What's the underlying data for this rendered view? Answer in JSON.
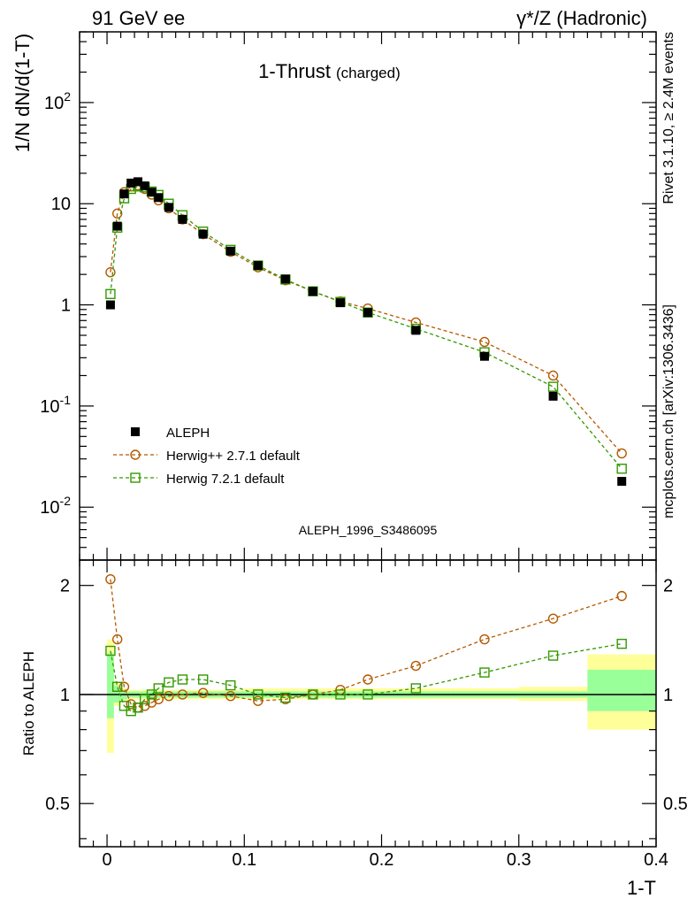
{
  "header": {
    "energy": "91 GeV ee",
    "process": "γ*/Z (Hadronic)"
  },
  "side_labels": {
    "rivet": "Rivet 3.1.10, ≥ 2.4M events",
    "mcplots": "mcplots.cern.ch [arXiv:1306.3436]"
  },
  "chart_data": [
    {
      "type": "scatter",
      "title": "1-Thrust",
      "title_note": "(charged)",
      "ylabel": "1/N dN/d(1-T)",
      "xlabel": "1-T",
      "analysis_tag": "ALEPH_1996_S3486095",
      "yscale": "log",
      "xlim": [
        -0.02,
        0.4
      ],
      "ylim": [
        0.003,
        500
      ],
      "y_ticks": [
        {
          "v": 0.01,
          "base": "10",
          "exp": "-2"
        },
        {
          "v": 0.1,
          "base": "10",
          "exp": "-1"
        },
        {
          "v": 1,
          "base": "1",
          "exp": ""
        },
        {
          "v": 10,
          "base": "10",
          "exp": ""
        },
        {
          "v": 100,
          "base": "10",
          "exp": "2"
        }
      ],
      "legend_position": "lower-left",
      "x": [
        0.0025,
        0.0075,
        0.0125,
        0.0175,
        0.0225,
        0.0275,
        0.0325,
        0.0375,
        0.045,
        0.055,
        0.07,
        0.09,
        0.11,
        0.13,
        0.15,
        0.17,
        0.19,
        0.225,
        0.275,
        0.325,
        0.375
      ],
      "series": [
        {
          "name": "ALEPH",
          "color": "#000000",
          "marker": "filled-square",
          "values": [
            1.0,
            6.0,
            12.5,
            16.0,
            16.5,
            15.0,
            13.0,
            11.5,
            9.2,
            7.0,
            5.0,
            3.4,
            2.45,
            1.8,
            1.36,
            1.05,
            0.84,
            0.56,
            0.31,
            0.125,
            0.018
          ]
        },
        {
          "name": "Herwig++ 2.7.1 default",
          "color": "#b35900",
          "marker": "open-circle",
          "values": [
            2.1,
            8.0,
            13.0,
            14.8,
            15.2,
            14.0,
            12.3,
            10.8,
            9.0,
            7.0,
            5.0,
            3.35,
            2.35,
            1.75,
            1.36,
            1.08,
            0.92,
            0.67,
            0.43,
            0.2,
            0.034
          ]
        },
        {
          "name": "Herwig 7.2.1 default",
          "color": "#339900",
          "marker": "open-square",
          "values": [
            1.28,
            5.8,
            11.3,
            14.0,
            14.8,
            14.5,
            13.2,
            12.2,
            10.0,
            7.7,
            5.3,
            3.5,
            2.45,
            1.78,
            1.36,
            1.07,
            0.84,
            0.58,
            0.34,
            0.155,
            0.024
          ]
        }
      ]
    },
    {
      "type": "scatter",
      "ylabel": "Ratio to ALEPH",
      "xlabel": "1-T",
      "xlim": [
        -0.02,
        0.4
      ],
      "ylim": [
        0.38,
        2.35
      ],
      "y_ticks": [
        {
          "v": 0.5,
          "label": "0.5"
        },
        {
          "v": 1,
          "label": "1"
        },
        {
          "v": 2,
          "label": "2"
        }
      ],
      "x_ticks": [
        {
          "v": 0,
          "label": "0"
        },
        {
          "v": 0.1,
          "label": "0.1"
        },
        {
          "v": 0.2,
          "label": "0.2"
        },
        {
          "v": 0.3,
          "label": "0.3"
        },
        {
          "v": 0.4,
          "label": "0.4"
        }
      ],
      "bins": [
        [
          0,
          0.005
        ],
        [
          0.005,
          0.01
        ],
        [
          0.01,
          0.015
        ],
        [
          0.015,
          0.02
        ],
        [
          0.02,
          0.025
        ],
        [
          0.025,
          0.03
        ],
        [
          0.03,
          0.035
        ],
        [
          0.035,
          0.04
        ],
        [
          0.04,
          0.05
        ],
        [
          0.05,
          0.06
        ],
        [
          0.06,
          0.08
        ],
        [
          0.08,
          0.1
        ],
        [
          0.1,
          0.12
        ],
        [
          0.12,
          0.14
        ],
        [
          0.14,
          0.16
        ],
        [
          0.16,
          0.18
        ],
        [
          0.18,
          0.2
        ],
        [
          0.2,
          0.25
        ],
        [
          0.25,
          0.3
        ],
        [
          0.3,
          0.35
        ],
        [
          0.35,
          0.4
        ]
      ],
      "band_stat": [
        [
          0.86,
          1.3
        ],
        [
          0.95,
          1.06
        ],
        [
          0.97,
          1.03
        ],
        [
          0.98,
          1.02
        ],
        [
          0.98,
          1.02
        ],
        [
          0.98,
          1.02
        ],
        [
          0.98,
          1.02
        ],
        [
          0.98,
          1.02
        ],
        [
          0.98,
          1.02
        ],
        [
          0.98,
          1.02
        ],
        [
          0.98,
          1.02
        ],
        [
          0.98,
          1.02
        ],
        [
          0.98,
          1.02
        ],
        [
          0.98,
          1.02
        ],
        [
          0.98,
          1.02
        ],
        [
          0.98,
          1.02
        ],
        [
          0.98,
          1.02
        ],
        [
          0.98,
          1.02
        ],
        [
          0.98,
          1.02
        ],
        [
          0.98,
          1.02
        ],
        [
          0.9,
          1.17
        ]
      ],
      "band_total": [
        [
          0.69,
          1.42
        ],
        [
          0.93,
          1.08
        ],
        [
          0.96,
          1.04
        ],
        [
          0.97,
          1.03
        ],
        [
          0.97,
          1.03
        ],
        [
          0.97,
          1.03
        ],
        [
          0.97,
          1.03
        ],
        [
          0.97,
          1.03
        ],
        [
          0.97,
          1.03
        ],
        [
          0.97,
          1.03
        ],
        [
          0.97,
          1.03
        ],
        [
          0.97,
          1.03
        ],
        [
          0.97,
          1.04
        ],
        [
          0.97,
          1.04
        ],
        [
          0.97,
          1.04
        ],
        [
          0.97,
          1.04
        ],
        [
          0.97,
          1.04
        ],
        [
          0.97,
          1.04
        ],
        [
          0.97,
          1.04
        ],
        [
          0.96,
          1.05
        ],
        [
          0.8,
          1.29
        ]
      ],
      "series": [
        {
          "name": "Herwig++ 2.7.1 default",
          "color": "#b35900",
          "marker": "open-circle",
          "values": [
            2.08,
            1.42,
            1.05,
            0.94,
            0.92,
            0.93,
            0.95,
            0.97,
            0.99,
            1.0,
            1.01,
            0.99,
            0.96,
            0.97,
            1.0,
            1.03,
            1.1,
            1.2,
            1.42,
            1.62,
            1.87
          ]
        },
        {
          "name": "Herwig 7.2.1 default",
          "color": "#339900",
          "marker": "open-square",
          "values": [
            1.32,
            1.05,
            0.93,
            0.9,
            0.92,
            0.97,
            1.0,
            1.04,
            1.08,
            1.1,
            1.1,
            1.06,
            1.0,
            0.98,
            1.0,
            1.0,
            1.0,
            1.04,
            1.15,
            1.28,
            1.38
          ]
        }
      ]
    }
  ]
}
